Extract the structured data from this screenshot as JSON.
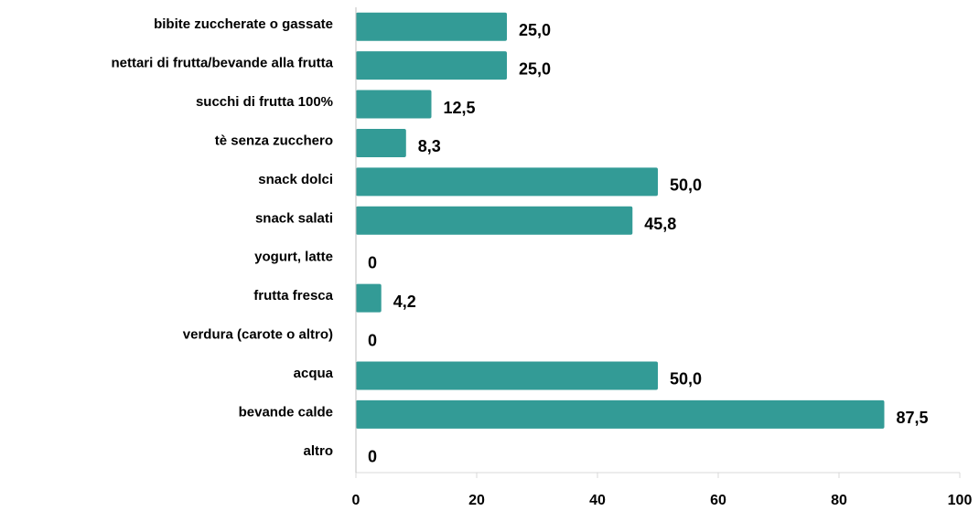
{
  "chart_data": {
    "type": "bar",
    "orientation": "horizontal",
    "categories": [
      "bibite zuccherate o gassate",
      "nettari di frutta/bevande alla frutta",
      "succhi di frutta 100%",
      "tè senza zucchero",
      "snack dolci",
      "snack salati",
      "yogurt, latte",
      "frutta fresca",
      "verdura (carote o altro)",
      "acqua",
      "bevande calde",
      "altro"
    ],
    "values": [
      25.0,
      25.0,
      12.5,
      8.3,
      50.0,
      45.8,
      0,
      4.2,
      0,
      50.0,
      87.5,
      0
    ],
    "value_labels": [
      "25,0",
      "25,0",
      "12,5",
      "8,3",
      "50,0",
      "45,8",
      "0",
      "4,2",
      "0",
      "50,0",
      "87,5",
      "0"
    ],
    "color": "#339b96",
    "xlim": [
      0,
      100
    ],
    "xticks": [
      0,
      20,
      40,
      60,
      80,
      100
    ],
    "grid": false
  }
}
